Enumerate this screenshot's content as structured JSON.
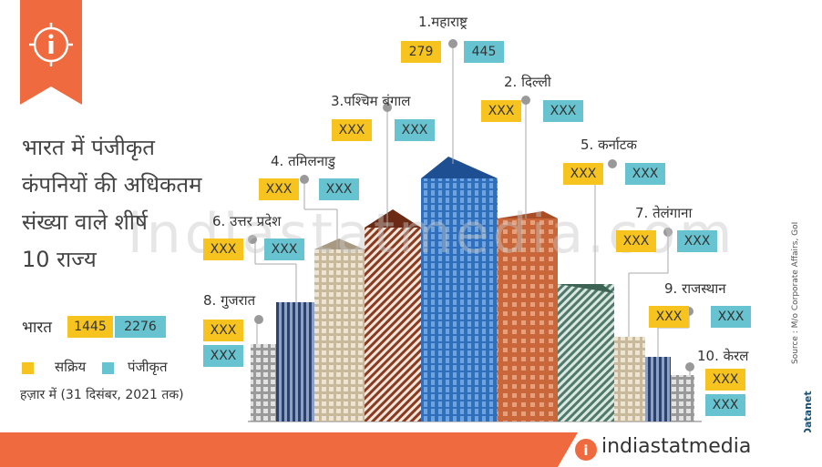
{
  "title_lines": [
    "भारत में पंजीकृत",
    "कंपनियों की अधिकतम",
    "संख्या वाले शीर्ष",
    "10 राज्य"
  ],
  "colors": {
    "active": "#f7c41f",
    "registered": "#66c3cf",
    "accent": "#ef6a3e"
  },
  "info_icon": "info-icon",
  "watermark": "indiastatmedia.com",
  "india_summary": {
    "label": "भारत",
    "active": "1445",
    "registered": "2276"
  },
  "legend": {
    "active": "सक्रिय",
    "registered": "पंजीकृत"
  },
  "unit_note": "हज़ार में (31 दिसंबर, 2021 तक)",
  "source": "Source : M/o Corporate Affairs, GoI",
  "side_brand": "© Datanet",
  "footer": {
    "brand": "indiastatmedia",
    "logo_icon": "indiastat-logo-icon"
  },
  "chart_data": {
    "type": "table",
    "unit": "हज़ार में",
    "series": [
      {
        "name": "सक्रिय"
      },
      {
        "name": "पंजीकृत"
      }
    ],
    "states": [
      {
        "rank": 1,
        "label": "1.महाराष्ट्र",
        "active": "279",
        "registered": "445"
      },
      {
        "rank": 2,
        "label": "2. दिल्ली",
        "active": "XXX",
        "registered": "XXX"
      },
      {
        "rank": 3,
        "label": "3.पश्चिम बंगाल",
        "active": "XXX",
        "registered": "XXX"
      },
      {
        "rank": 4,
        "label": "4. तमिलनाडु",
        "active": "XXX",
        "registered": "XXX"
      },
      {
        "rank": 5,
        "label": "5. कर्नाटक",
        "active": "XXX",
        "registered": "XXX"
      },
      {
        "rank": 6,
        "label": "6. उत्तर प्रदेश",
        "active": "XXX",
        "registered": "XXX"
      },
      {
        "rank": 7,
        "label": "7. तेलंगाना",
        "active": "XXX",
        "registered": "XXX"
      },
      {
        "rank": 8,
        "label": "8. गुजरात",
        "active": "XXX",
        "registered": "XXX"
      },
      {
        "rank": 9,
        "label": "9. राजस्थान",
        "active": "XXX",
        "registered": "XXX"
      },
      {
        "rank": 10,
        "label": "10. केरल",
        "active": "XXX",
        "registered": "XXX"
      }
    ]
  }
}
